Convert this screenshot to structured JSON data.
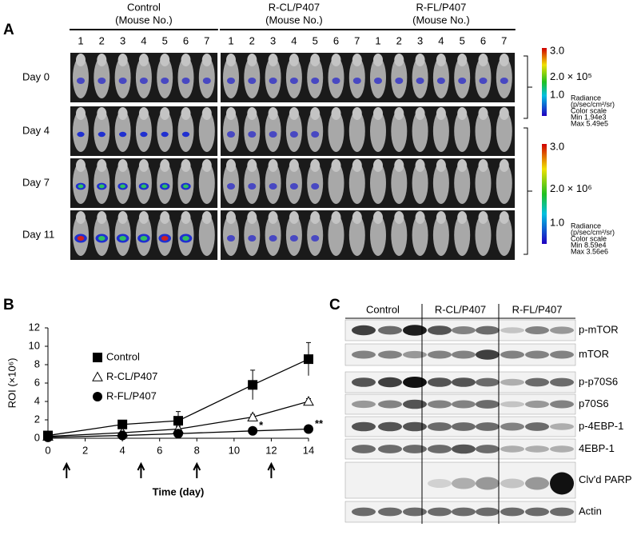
{
  "panel_a": {
    "label": "A",
    "groups": [
      {
        "name": "Control",
        "sub": "(Mouse No.)",
        "mice": [
          "1",
          "2",
          "3",
          "4",
          "5",
          "6",
          "7"
        ]
      },
      {
        "name": "R-CL/P407",
        "sub": "(Mouse No.)",
        "mice": [
          "1",
          "2",
          "3",
          "4",
          "5",
          "6",
          "7"
        ]
      },
      {
        "name": "R-FL/P407",
        "sub": "(Mouse No.)",
        "mice": [
          "1",
          "2",
          "3",
          "4",
          "5",
          "6",
          "7"
        ]
      }
    ],
    "days": [
      "Day 0",
      "Day 4",
      "Day 7",
      "Day 11"
    ],
    "color_scales": [
      {
        "top": "3.0",
        "mid": "2.0 × 10⁵",
        "bottom": "1.0",
        "unit": "Radiance",
        "unit2": "(p/sec/cm²/sr)",
        "title": "Color scale",
        "min": "Min   1.94e3",
        "max": "Max   5.49e5"
      },
      {
        "top": "3.0",
        "mid": "2.0 × 10⁶",
        "bottom": "1.0",
        "unit": "Radiance",
        "unit2": "(p/sec/cm²/sr)",
        "title": "Color scale",
        "min": "Min   8.59e4",
        "max": "Max   3.56e6"
      }
    ]
  },
  "chart_data": {
    "type": "line",
    "panel_label": "B",
    "x": [
      0,
      4,
      7,
      11,
      14
    ],
    "xlim": [
      0,
      14
    ],
    "xticks": [
      0,
      2,
      4,
      6,
      8,
      10,
      12,
      14
    ],
    "ylim": [
      0,
      12
    ],
    "yticks": [
      0,
      2,
      4,
      6,
      8,
      10,
      12
    ],
    "xlabel": "Time (day)",
    "ylabel": "ROI (×10⁶)",
    "series": [
      {
        "name": "Control",
        "marker": "square",
        "color": "#000000",
        "values": [
          0.3,
          1.5,
          1.9,
          5.8,
          8.6
        ],
        "errors": [
          0.2,
          0.4,
          1.0,
          1.6,
          1.8
        ]
      },
      {
        "name": "R-CL/P407",
        "marker": "triangle",
        "color": "#000000",
        "values": [
          0.2,
          0.6,
          1.0,
          2.3,
          4.0
        ],
        "errors": [
          0.1,
          0.2,
          0.3,
          0.3,
          0.3
        ]
      },
      {
        "name": "R-FL/P407",
        "marker": "circle",
        "color": "#000000",
        "values": [
          0.1,
          0.3,
          0.5,
          0.8,
          1.0
        ],
        "errors": [
          0.1,
          0.1,
          0.1,
          0.2,
          0.2
        ]
      }
    ],
    "annotations": [
      {
        "x": 11,
        "text": "*"
      },
      {
        "x": 14,
        "text": "**"
      }
    ],
    "treatment_days": [
      1,
      5,
      8,
      12
    ]
  },
  "panel_c": {
    "label": "C",
    "groups": [
      "Control",
      "R-CL/P407",
      "R-FL/P407"
    ],
    "proteins": [
      "p-mTOR",
      "mTOR",
      "p-p70S6",
      "p70S6",
      "p-4EBP-1",
      "4EBP-1",
      "Clv'd PARP",
      "Actin"
    ]
  }
}
